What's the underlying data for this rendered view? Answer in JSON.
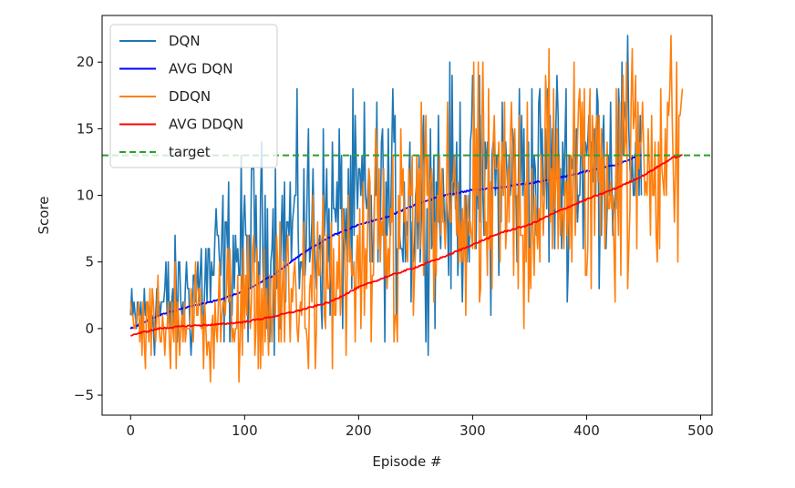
{
  "chart_data": {
    "type": "line",
    "xlabel": "Episode #",
    "ylabel": "Score",
    "xlim": [
      -25,
      510
    ],
    "ylim": [
      -6.5,
      23.5
    ],
    "x_ticks": [
      0,
      100,
      200,
      300,
      400,
      500
    ],
    "y_ticks": [
      -5,
      0,
      5,
      10,
      15,
      20
    ],
    "grid": false,
    "legend_position": "top-left",
    "target": {
      "name": "target",
      "value": 13,
      "color": "#2ca02c",
      "style": "dashed"
    },
    "series": [
      {
        "name": "DQN",
        "color": "#1f77b4",
        "kind": "raw",
        "x_start": 0,
        "x_end": 448,
        "trend": [
          [
            0,
            0.5
          ],
          [
            50,
            2.5
          ],
          [
            100,
            6
          ],
          [
            150,
            7.5
          ],
          [
            200,
            8.5
          ],
          [
            250,
            9.5
          ],
          [
            300,
            10.5
          ],
          [
            350,
            11.5
          ],
          [
            400,
            12.5
          ],
          [
            448,
            13.5
          ]
        ],
        "spread": [
          [
            0,
            2
          ],
          [
            80,
            4
          ],
          [
            150,
            5
          ],
          [
            300,
            5.5
          ],
          [
            448,
            5
          ]
        ]
      },
      {
        "name": "AVG DQN",
        "color": "#0000ff",
        "kind": "avg",
        "x_start": 0,
        "x_end": 448,
        "points": [
          [
            0,
            0.0
          ],
          [
            25,
            1.0
          ],
          [
            50,
            1.6
          ],
          [
            75,
            2.1
          ],
          [
            100,
            2.8
          ],
          [
            125,
            4.0
          ],
          [
            150,
            5.6
          ],
          [
            175,
            6.9
          ],
          [
            200,
            7.8
          ],
          [
            225,
            8.4
          ],
          [
            250,
            9.3
          ],
          [
            275,
            10.0
          ],
          [
            300,
            10.4
          ],
          [
            325,
            10.6
          ],
          [
            350,
            10.9
          ],
          [
            375,
            11.3
          ],
          [
            400,
            11.8
          ],
          [
            425,
            12.3
          ],
          [
            448,
            13.0
          ]
        ]
      },
      {
        "name": "DDQN",
        "color": "#ff7f0e",
        "kind": "raw",
        "x_start": 0,
        "x_end": 484,
        "trend": [
          [
            0,
            0
          ],
          [
            50,
            0.5
          ],
          [
            100,
            1.5
          ],
          [
            150,
            2.5
          ],
          [
            200,
            4
          ],
          [
            250,
            8
          ],
          [
            300,
            8.5
          ],
          [
            350,
            10
          ],
          [
            400,
            11.5
          ],
          [
            450,
            13
          ],
          [
            484,
            14
          ]
        ],
        "spread": [
          [
            0,
            2
          ],
          [
            60,
            3
          ],
          [
            150,
            4
          ],
          [
            240,
            6
          ],
          [
            350,
            6.5
          ],
          [
            484,
            6
          ]
        ]
      },
      {
        "name": "AVG DDQN",
        "color": "#ff0000",
        "kind": "avg",
        "x_start": 0,
        "x_end": 484,
        "points": [
          [
            0,
            -0.5
          ],
          [
            25,
            0.0
          ],
          [
            50,
            0.2
          ],
          [
            75,
            0.3
          ],
          [
            100,
            0.5
          ],
          [
            125,
            0.9
          ],
          [
            150,
            1.4
          ],
          [
            175,
            2.0
          ],
          [
            200,
            3.1
          ],
          [
            225,
            3.9
          ],
          [
            250,
            4.6
          ],
          [
            275,
            5.4
          ],
          [
            300,
            6.3
          ],
          [
            325,
            7.2
          ],
          [
            350,
            7.8
          ],
          [
            375,
            8.8
          ],
          [
            400,
            9.7
          ],
          [
            425,
            10.5
          ],
          [
            450,
            11.5
          ],
          [
            475,
            12.8
          ],
          [
            484,
            13.0
          ]
        ]
      }
    ]
  }
}
